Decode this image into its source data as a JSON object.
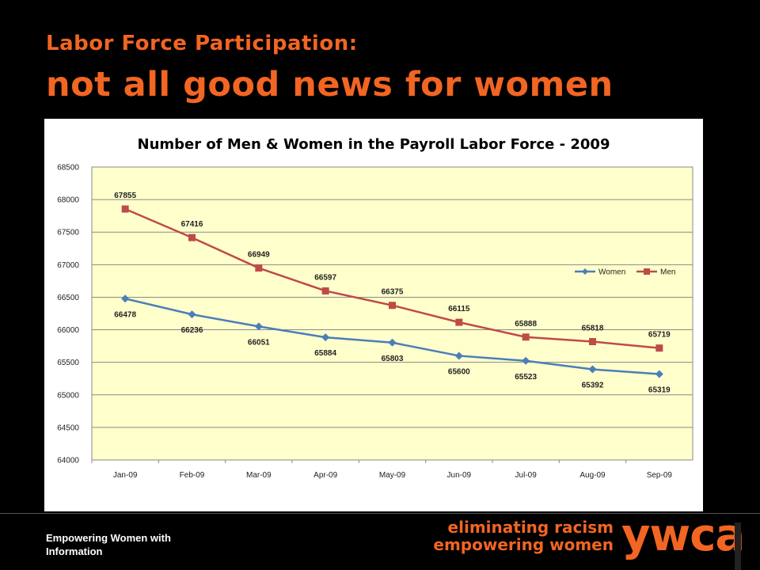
{
  "slide": {
    "title_line1": "Labor Force Participation:",
    "title_line2": "not all good news for women",
    "footer_text": "Empowering Women with Information",
    "tagline_line1": "eliminating racism",
    "tagline_line2": "empowering women",
    "logo_text": "ywca",
    "colors": {
      "accent": "#f26522",
      "background": "#000000"
    }
  },
  "chart_data": {
    "type": "line",
    "title": "Number of Men & Women in the Payroll Labor Force - 2009",
    "xlabel": "",
    "ylabel": "",
    "categories": [
      "Jan-09",
      "Feb-09",
      "Mar-09",
      "Apr-09",
      "May-09",
      "Jun-09",
      "Jul-09",
      "Aug-09",
      "Sep-09"
    ],
    "ylim": [
      64000,
      68500
    ],
    "yticks": [
      64000,
      64500,
      65000,
      65500,
      66000,
      66500,
      67000,
      67500,
      68000,
      68500
    ],
    "grid": true,
    "legend_position": "right",
    "plot_background": "#ffffcc",
    "series": [
      {
        "name": "Women",
        "color": "#4a7ebb",
        "marker": "diamond",
        "label_position": "below",
        "values": [
          66478,
          66236,
          66051,
          65884,
          65803,
          65600,
          65523,
          65392,
          65319
        ]
      },
      {
        "name": "Men",
        "color": "#be4b48",
        "marker": "square",
        "label_position": "above",
        "values": [
          67855,
          67416,
          66949,
          66597,
          66375,
          66115,
          65888,
          65818,
          65719
        ]
      }
    ]
  }
}
